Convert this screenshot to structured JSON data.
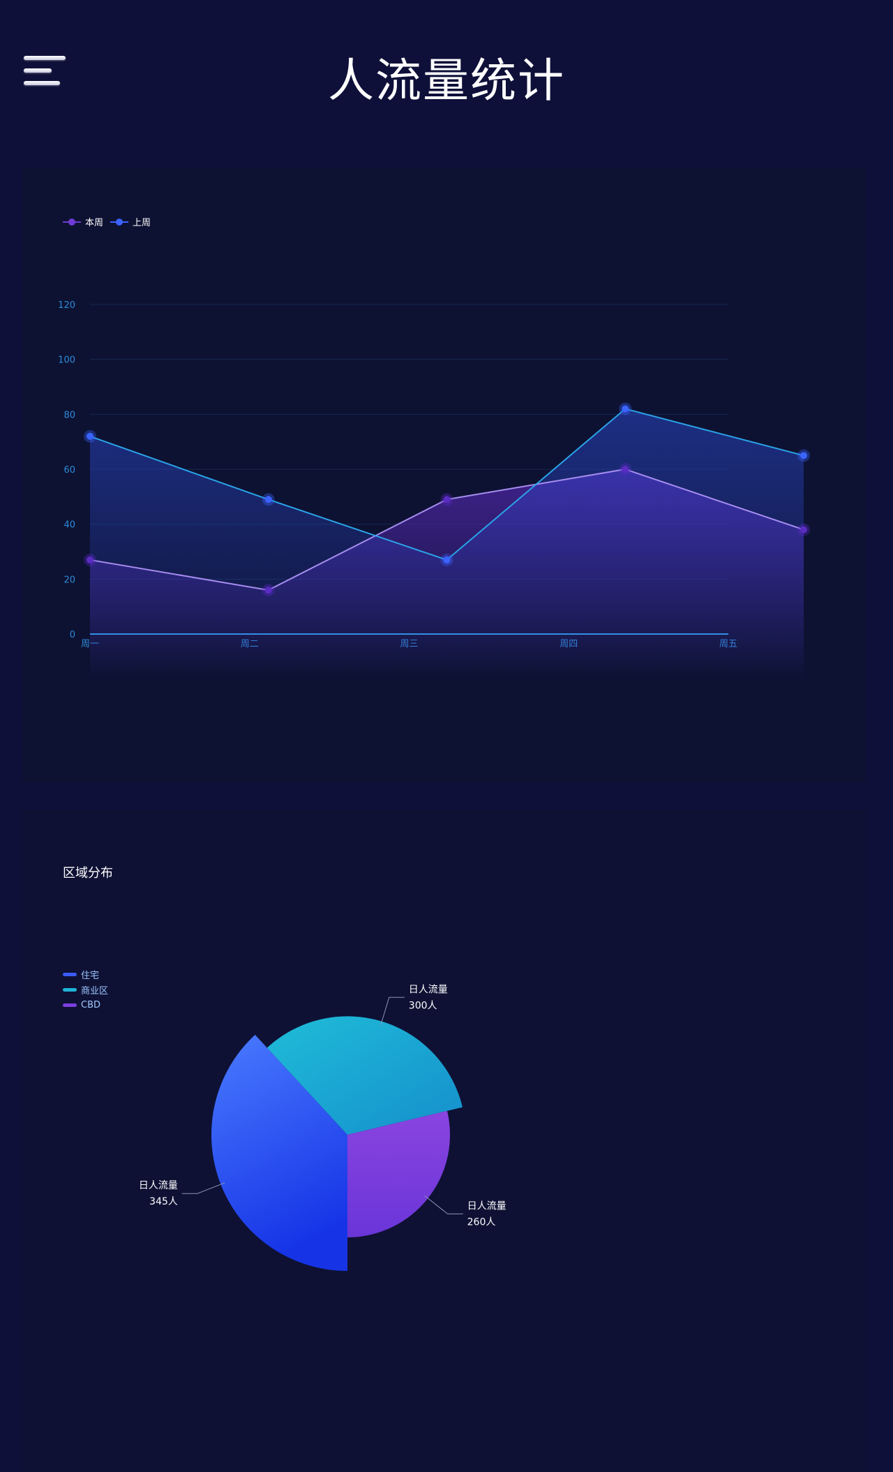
{
  "header": {
    "title": "人流量统计",
    "menu_icon": "menu-icon"
  },
  "line_chart": {
    "legend": [
      {
        "name": "本周",
        "color": "#6f3bd7"
      },
      {
        "name": "上周",
        "color": "#3a63ff"
      }
    ]
  },
  "pie_section": {
    "title": "区域分布",
    "legend": [
      {
        "name": "住宅",
        "color": "#3a5cff"
      },
      {
        "name": "商业区",
        "color": "#1fb4d8"
      },
      {
        "name": "CBD",
        "color": "#7c3fe0"
      }
    ]
  },
  "chart_data": [
    {
      "type": "area",
      "categories": [
        "周一",
        "周二",
        "周三",
        "周四",
        "周五"
      ],
      "series": [
        {
          "name": "本周",
          "values": [
            27,
            16,
            49,
            60,
            38
          ],
          "color": "#a68cf0"
        },
        {
          "name": "上周",
          "values": [
            72,
            49,
            27,
            82,
            65
          ],
          "color": "#2aa3e8"
        }
      ],
      "ylim": [
        0,
        120
      ],
      "yticks": [
        0,
        20,
        40,
        60,
        80,
        100,
        120
      ],
      "grid": true,
      "legend_position": "top-left"
    },
    {
      "type": "pie",
      "slices": [
        {
          "name": "住宅",
          "value": 345,
          "label": "日人流量",
          "value_label": "345人"
        },
        {
          "name": "商业区",
          "value": 300,
          "label": "日人流量",
          "value_label": "300人"
        },
        {
          "name": "CBD",
          "value": 260,
          "label": "日人流量",
          "value_label": "260人"
        }
      ],
      "rose_type": "radius",
      "legend_position": "top-left"
    }
  ]
}
